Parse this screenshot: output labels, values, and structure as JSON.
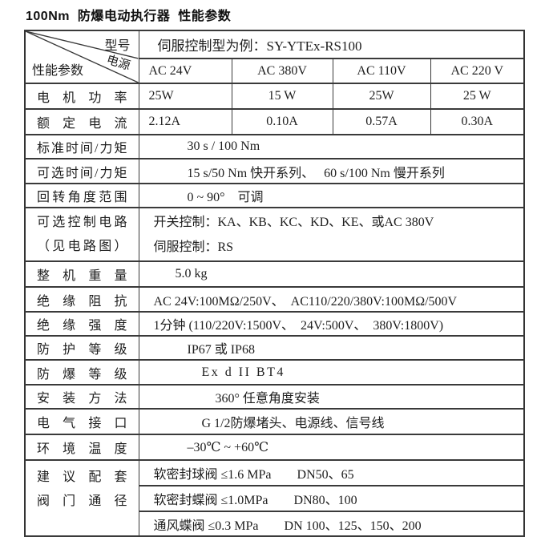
{
  "page_title": "100Nm  防爆电动执行器  性能参数",
  "table": {
    "corner": {
      "top": "型号",
      "middle": "电源",
      "bottom": "性能参数"
    },
    "model_example": "伺服控制型为例：SY-YTEx-RS100",
    "power_columns": [
      "AC 24V",
      "AC 380V",
      "AC 110V",
      "AC 220 V"
    ],
    "rows": [
      {
        "type": "values",
        "label": "电机功率",
        "cells": [
          "25W",
          "15 W",
          "25W",
          "25 W"
        ]
      },
      {
        "type": "values",
        "label": "额定电流",
        "cells": [
          "2.12A",
          "0.10A",
          "0.57A",
          "0.30A"
        ]
      },
      {
        "type": "span",
        "label": "标准时间/力矩",
        "text": "30 s / 100 Nm",
        "pad": "pc"
      },
      {
        "type": "span",
        "label": "可选时间/力矩",
        "text": "15 s/50 Nm 快开系列、　 60 s/100 Nm 慢开系列",
        "pad": "pc"
      },
      {
        "type": "span",
        "label": "回转角度范围",
        "text": "0 ~ 90°　可调",
        "pad": "pc"
      },
      {
        "type": "multiline",
        "label": "可选控制电路",
        "label2": "（见电路图）",
        "lines": [
          "开关控制：KA、KB、KC、KD、KE、或AC 380V",
          "伺服控制：RS"
        ],
        "pad": "pa"
      },
      {
        "type": "span",
        "label": "整机重量",
        "text": "5.0 kg",
        "pad": "pb"
      },
      {
        "type": "span",
        "label": "绝缘阻抗",
        "text": "AC 24V:100MΩ/250V、　AC110/220/380V:100MΩ/500V",
        "pad": "pa"
      },
      {
        "type": "span",
        "label": "绝缘强度",
        "text": "1分钟 (110/220V:1500V、　24V:500V、　380V:1800V)",
        "pad": "pa"
      },
      {
        "type": "span",
        "label": "防护等级",
        "text": "IP67 或 IP68",
        "pad": "pc"
      },
      {
        "type": "span",
        "label": "防爆等级",
        "text": "Ex d II BT4",
        "pad": "pd",
        "spaced": true
      },
      {
        "type": "span",
        "label": "安装方法",
        "text": "360° 任意角度安装",
        "pad": "pe"
      },
      {
        "type": "span",
        "label": "电气接口",
        "text": "G 1/2防爆堵头、电源线、信号线",
        "pd": "",
        "pad": "pd"
      },
      {
        "type": "span",
        "label": "环境温度",
        "text": "–30℃ ~ +60℃",
        "pad": "pc"
      },
      {
        "type": "group",
        "label": "建议配套",
        "label2": "阀门通径",
        "subrows": [
          "软密封球阀 ≤1.6 MPa　　DN50、65",
          "软密封蝶阀 ≤1.0MPa　　DN80、100",
          "通风蝶阀 ≤0.3 MPa　　DN 100、125、150、200"
        ],
        "pad": "pa"
      }
    ]
  }
}
